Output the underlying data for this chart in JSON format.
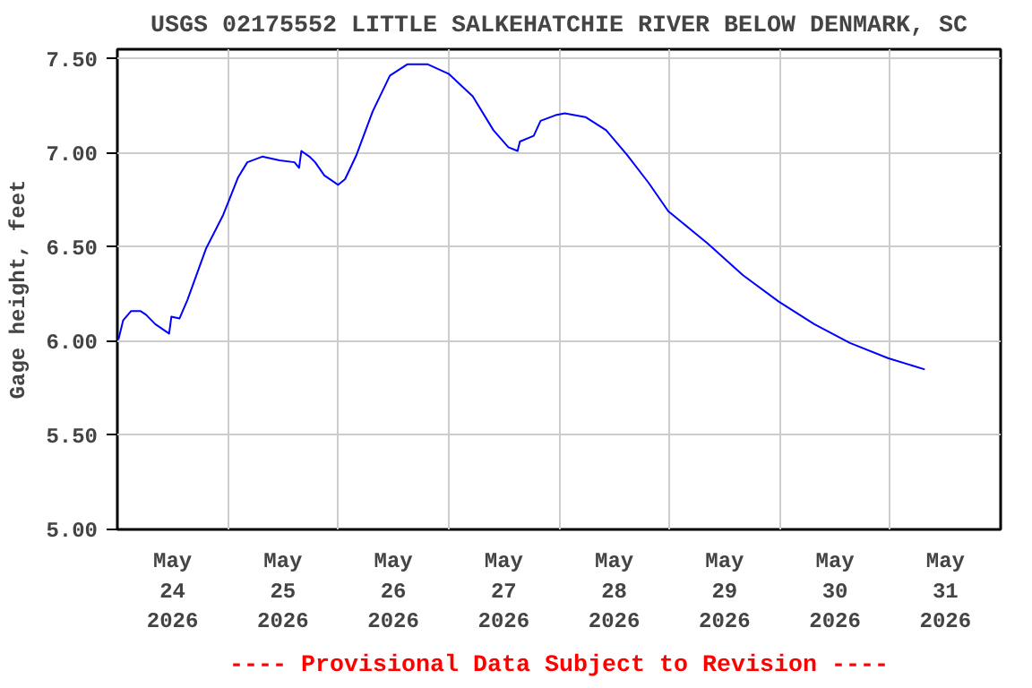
{
  "chart_data": {
    "type": "line",
    "title": "USGS 02175552 LITTLE SALKEHATCHIE RIVER BELOW DENMARK, SC",
    "ylabel": "Gage height, feet",
    "annotations": [
      "---- Provisional Data Subject to Revision ----"
    ],
    "x": [
      "2026-05-24T00:15",
      "2026-05-24T01:15",
      "2026-05-24T03:00",
      "2026-05-24T05:00",
      "2026-05-24T06:15",
      "2026-05-24T08:15",
      "2026-05-24T11:15",
      "2026-05-24T11:45",
      "2026-05-24T13:30",
      "2026-05-24T15:15",
      "2026-05-24T19:15",
      "2026-05-24T23:00",
      "2026-05-25T02:15",
      "2026-05-25T04:15",
      "2026-05-25T07:30",
      "2026-05-25T11:15",
      "2026-05-25T14:30",
      "2026-05-25T15:30",
      "2026-05-25T16:00",
      "2026-05-25T17:45",
      "2026-05-25T19:00",
      "2026-05-25T21:00",
      "2026-05-26T00:00",
      "2026-05-26T01:30",
      "2026-05-26T04:00",
      "2026-05-26T07:30",
      "2026-05-26T11:15",
      "2026-05-26T15:00",
      "2026-05-26T19:30",
      "2026-05-27T00:00",
      "2026-05-27T05:15",
      "2026-05-27T09:45",
      "2026-05-27T13:00",
      "2026-05-27T15:00",
      "2026-05-27T15:30",
      "2026-05-27T18:30",
      "2026-05-27T20:00",
      "2026-05-27T23:15",
      "2026-05-28T01:15",
      "2026-05-28T05:45",
      "2026-05-28T10:15",
      "2026-05-28T14:45",
      "2026-05-28T19:30",
      "2026-05-28T23:45",
      "2026-05-29T08:15",
      "2026-05-29T16:00",
      "2026-05-29T23:45",
      "2026-05-30T07:30",
      "2026-05-30T15:15",
      "2026-05-30T23:30",
      "2026-05-31T07:30"
    ],
    "series": [
      {
        "color": "#0000ff",
        "values": [
          6.01,
          6.11,
          6.16,
          6.16,
          6.14,
          6.09,
          6.04,
          6.13,
          6.12,
          6.22,
          6.49,
          6.67,
          6.87,
          6.95,
          6.98,
          6.96,
          6.95,
          6.92,
          7.01,
          6.98,
          6.95,
          6.88,
          6.83,
          6.86,
          6.99,
          7.22,
          7.41,
          7.47,
          7.47,
          7.42,
          7.3,
          7.12,
          7.03,
          7.01,
          7.06,
          7.09,
          7.17,
          7.2,
          7.21,
          7.19,
          7.12,
          6.99,
          6.84,
          6.69,
          6.52,
          6.35,
          6.21,
          6.09,
          5.99,
          5.91,
          5.85
        ]
      }
    ],
    "xlim": [
      "2026-05-24T00:00",
      "2026-06-01T00:00"
    ],
    "xticks": [
      {
        "value": "2026-05-24T00:00",
        "label": null
      },
      {
        "value": "2026-05-24T12:00",
        "label": "May\n24\n2026"
      },
      {
        "value": "2026-05-25T00:00",
        "label": null
      },
      {
        "value": "2026-05-25T12:00",
        "label": "May\n25\n2026"
      },
      {
        "value": "2026-05-26T00:00",
        "label": null
      },
      {
        "value": "2026-05-26T12:00",
        "label": "May\n26\n2026"
      },
      {
        "value": "2026-05-27T00:00",
        "label": null
      },
      {
        "value": "2026-05-27T12:00",
        "label": "May\n27\n2026"
      },
      {
        "value": "2026-05-28T00:00",
        "label": null
      },
      {
        "value": "2026-05-28T12:00",
        "label": "May\n28\n2026"
      },
      {
        "value": "2026-05-29T00:00",
        "label": null
      },
      {
        "value": "2026-05-29T12:00",
        "label": "May\n29\n2026"
      },
      {
        "value": "2026-05-30T00:00",
        "label": null
      },
      {
        "value": "2026-05-30T12:00",
        "label": "May\n30\n2026"
      },
      {
        "value": "2026-05-31T00:00",
        "label": null
      },
      {
        "value": "2026-05-31T12:00",
        "label": "May\n31\n2026"
      },
      {
        "value": "2026-06-01T00:00",
        "label": null
      }
    ],
    "ylim": [
      5.0,
      7.55
    ],
    "yticks": [
      {
        "value": 5.0,
        "label": "5.00"
      },
      {
        "value": 5.5,
        "label": "5.50"
      },
      {
        "value": 6.0,
        "label": "6.00"
      },
      {
        "value": 6.5,
        "label": "6.50"
      },
      {
        "value": 7.0,
        "label": "7.00"
      },
      {
        "value": 7.5,
        "label": "7.50"
      }
    ],
    "grid": true
  }
}
